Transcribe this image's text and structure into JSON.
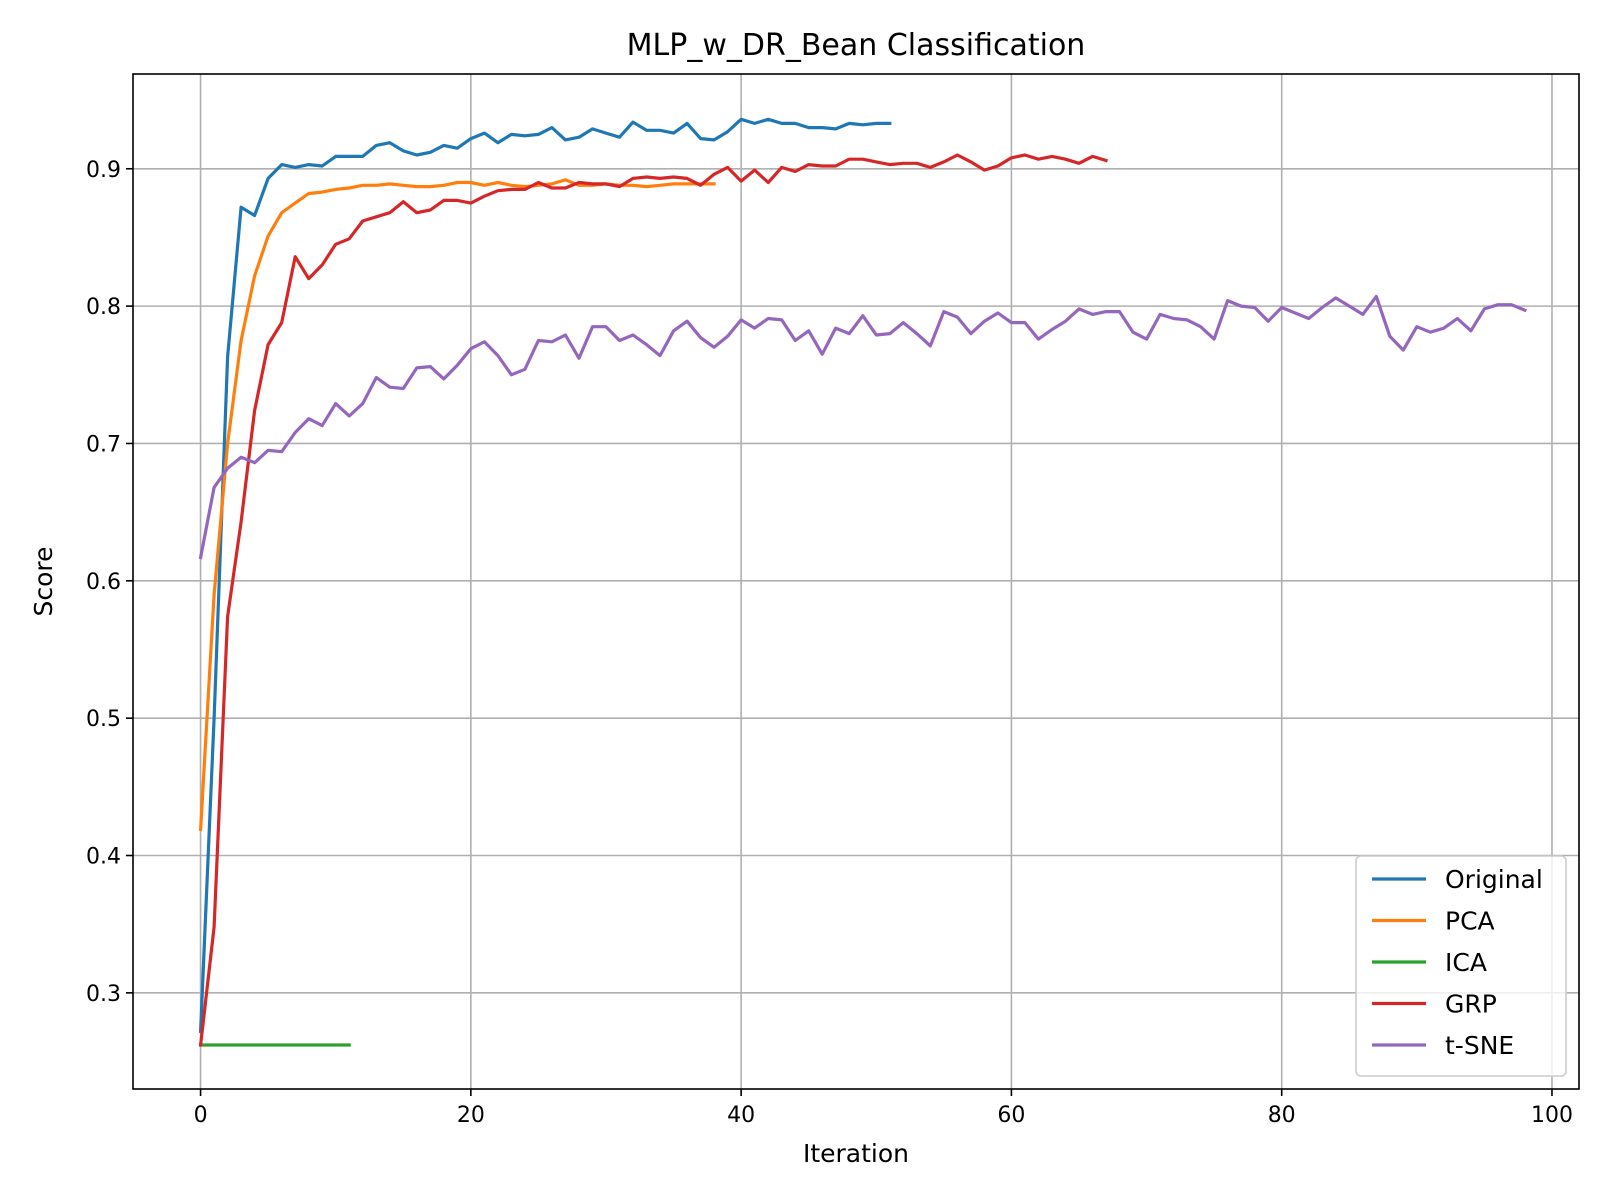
{
  "chart_data": {
    "type": "line",
    "title": "MLP_w_DR_Bean Classification",
    "xlabel": "Iteration",
    "ylabel": "Score",
    "xlim": [
      -5,
      102
    ],
    "ylim": [
      0.23,
      0.969
    ],
    "xticks": [
      0,
      20,
      40,
      60,
      80,
      100
    ],
    "xtick_labels": [
      "0",
      "20",
      "40",
      "60",
      "80",
      "100"
    ],
    "yticks": [
      0.3,
      0.4,
      0.5,
      0.6,
      0.7,
      0.8,
      0.9
    ],
    "ytick_labels": [
      "0.3",
      "0.4",
      "0.5",
      "0.6",
      "0.7",
      "0.8",
      "0.9"
    ],
    "grid": true,
    "legend_position": "lower-right",
    "series": [
      {
        "name": "Original",
        "color": "#1f77b4",
        "values": [
          0.272,
          0.5,
          0.763,
          0.872,
          0.866,
          0.893,
          0.903,
          0.901,
          0.903,
          0.902,
          0.909,
          0.909,
          0.909,
          0.917,
          0.919,
          0.913,
          0.91,
          0.912,
          0.917,
          0.915,
          0.922,
          0.926,
          0.919,
          0.925,
          0.924,
          0.925,
          0.93,
          0.921,
          0.923,
          0.929,
          0.926,
          0.923,
          0.934,
          0.928,
          0.928,
          0.926,
          0.933,
          0.922,
          0.921,
          0.927,
          0.936,
          0.933,
          0.936,
          0.933,
          0.933,
          0.93,
          0.93,
          0.929,
          0.933,
          0.932,
          0.933,
          0.933
        ]
      },
      {
        "name": "PCA",
        "color": "#ff7f0e",
        "values": [
          0.419,
          0.59,
          0.7,
          0.775,
          0.822,
          0.851,
          0.868,
          0.875,
          0.882,
          0.883,
          0.885,
          0.886,
          0.888,
          0.888,
          0.889,
          0.888,
          0.887,
          0.887,
          0.888,
          0.89,
          0.89,
          0.888,
          0.89,
          0.888,
          0.887,
          0.888,
          0.889,
          0.892,
          0.888,
          0.888,
          0.889,
          0.888,
          0.888,
          0.887,
          0.888,
          0.889,
          0.889,
          0.889,
          0.889
        ]
      },
      {
        "name": "ICA",
        "color": "#2ca02c",
        "values": [
          0.262,
          0.262,
          0.262,
          0.262,
          0.262,
          0.262,
          0.262,
          0.262,
          0.262,
          0.262,
          0.262,
          0.262
        ]
      },
      {
        "name": "GRP",
        "color": "#d62728",
        "values": [
          0.262,
          0.348,
          0.574,
          0.643,
          0.724,
          0.772,
          0.788,
          0.836,
          0.82,
          0.83,
          0.845,
          0.849,
          0.862,
          0.865,
          0.868,
          0.876,
          0.868,
          0.87,
          0.877,
          0.877,
          0.875,
          0.88,
          0.884,
          0.885,
          0.885,
          0.89,
          0.886,
          0.886,
          0.89,
          0.889,
          0.889,
          0.887,
          0.893,
          0.894,
          0.893,
          0.894,
          0.893,
          0.888,
          0.896,
          0.901,
          0.891,
          0.899,
          0.89,
          0.901,
          0.898,
          0.903,
          0.902,
          0.902,
          0.907,
          0.907,
          0.905,
          0.903,
          0.904,
          0.904,
          0.901,
          0.905,
          0.91,
          0.905,
          0.899,
          0.902,
          0.908,
          0.91,
          0.907,
          0.909,
          0.907,
          0.904,
          0.909,
          0.906
        ]
      },
      {
        "name": "t-SNE",
        "color": "#9467bd",
        "values": [
          0.617,
          0.668,
          0.682,
          0.69,
          0.686,
          0.695,
          0.694,
          0.708,
          0.718,
          0.713,
          0.729,
          0.72,
          0.729,
          0.748,
          0.741,
          0.74,
          0.755,
          0.756,
          0.747,
          0.757,
          0.769,
          0.774,
          0.764,
          0.75,
          0.754,
          0.775,
          0.774,
          0.779,
          0.762,
          0.785,
          0.785,
          0.775,
          0.779,
          0.772,
          0.764,
          0.782,
          0.789,
          0.777,
          0.77,
          0.778,
          0.79,
          0.784,
          0.791,
          0.79,
          0.775,
          0.782,
          0.765,
          0.784,
          0.78,
          0.793,
          0.779,
          0.78,
          0.788,
          0.78,
          0.771,
          0.796,
          0.792,
          0.78,
          0.789,
          0.795,
          0.788,
          0.788,
          0.776,
          0.783,
          0.789,
          0.798,
          0.794,
          0.796,
          0.796,
          0.781,
          0.776,
          0.794,
          0.791,
          0.79,
          0.785,
          0.776,
          0.804,
          0.8,
          0.799,
          0.789,
          0.799,
          0.795,
          0.791,
          0.799,
          0.806,
          0.8,
          0.794,
          0.807,
          0.778,
          0.768,
          0.785,
          0.781,
          0.784,
          0.791,
          0.782,
          0.798,
          0.801,
          0.801,
          0.797
        ]
      }
    ]
  }
}
